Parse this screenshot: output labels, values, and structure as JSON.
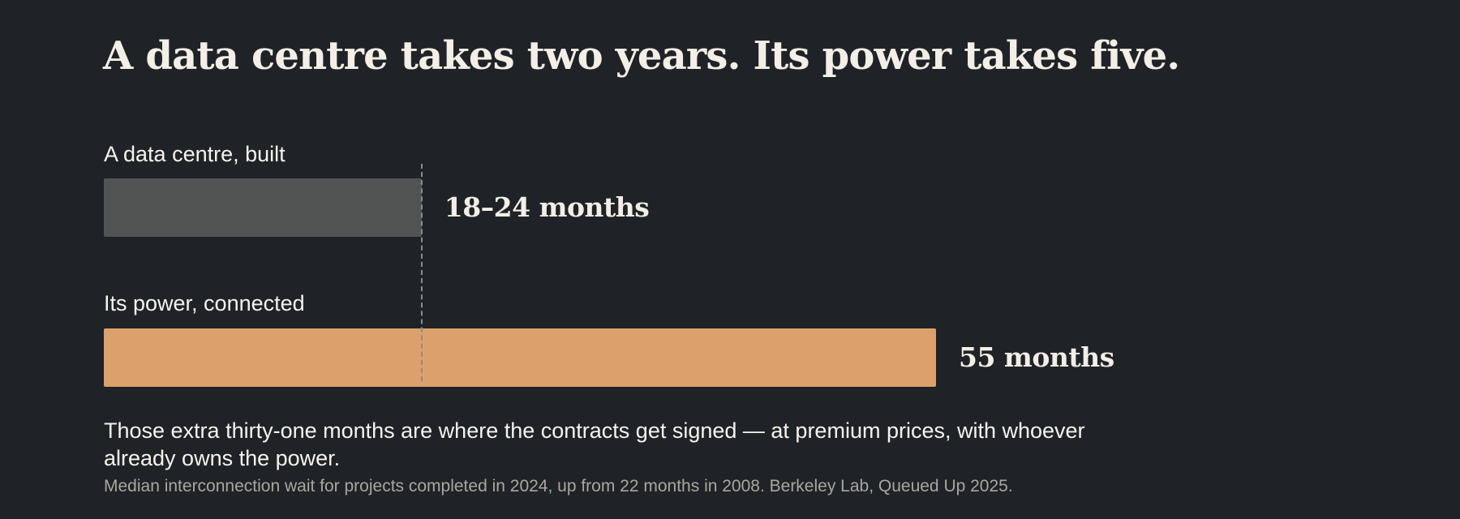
{
  "title": "A data centre takes two years. Its power takes five.",
  "chart_data": {
    "type": "bar",
    "orientation": "horizontal",
    "unit": "months",
    "xlim": [
      0,
      55
    ],
    "categories": [
      "A data centre, built",
      "Its power, connected"
    ],
    "values": [
      21,
      55
    ],
    "ranges": [
      [
        18,
        24
      ],
      null
    ],
    "value_labels": [
      "18–24 months",
      "55 months"
    ],
    "colors": [
      "#525353",
      "#dca06c"
    ],
    "reference_line": {
      "value": 21,
      "style": "dashed"
    }
  },
  "takeaway": "Those extra thirty-one months are where the contracts get signed — at premium prices, with whoever already owns the power.",
  "source": "Median interconnection wait for projects completed in 2024, up from 22 months in 2008. Berkeley Lab, Queued Up 2025."
}
